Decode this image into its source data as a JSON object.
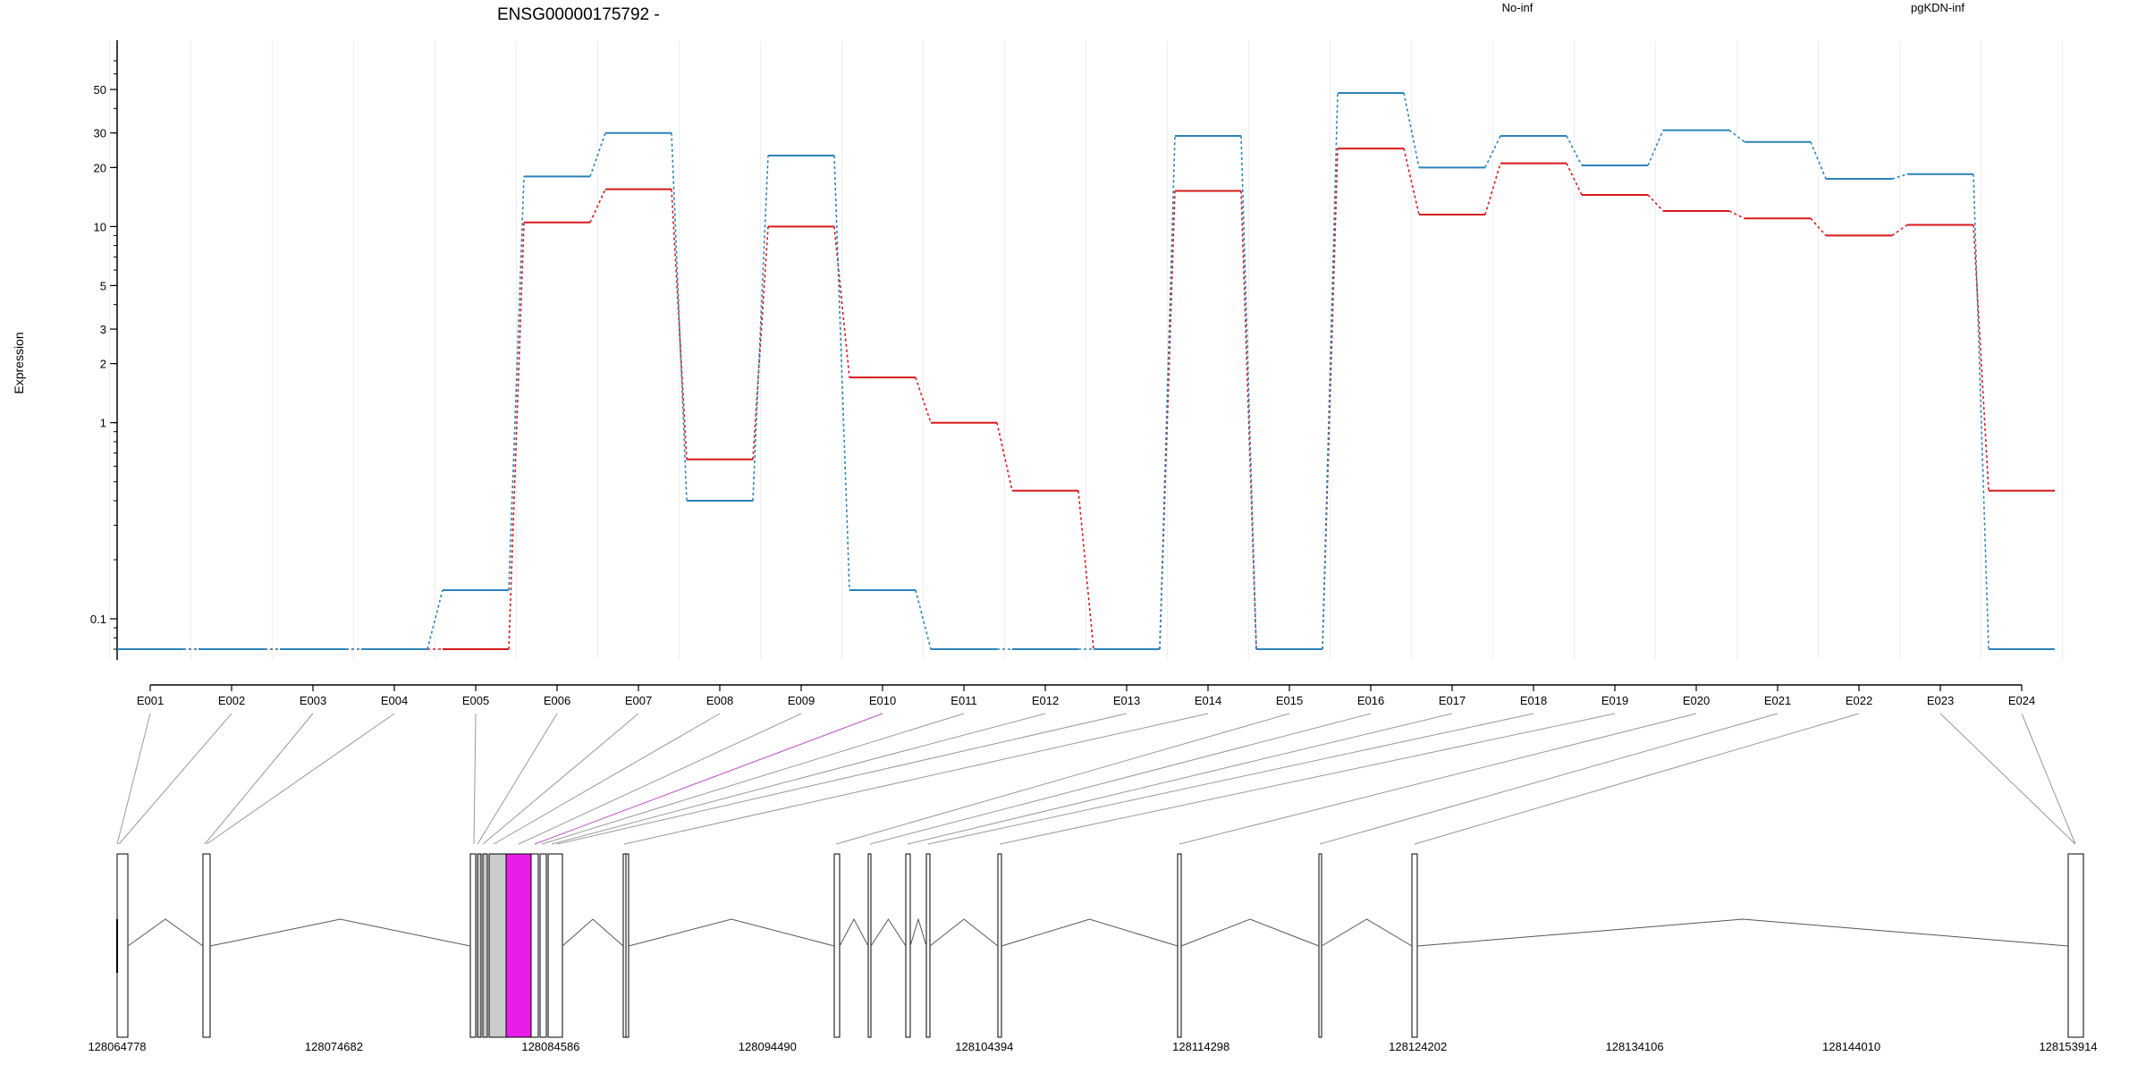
{
  "chart_data": {
    "type": "line",
    "title": "ENSG00000175792 -",
    "ylabel": "Expression",
    "yscale": "log",
    "ylim": [
      0.07,
      70
    ],
    "yticks": [
      0.1,
      1,
      2,
      3,
      5,
      10,
      20,
      30,
      50
    ],
    "yticklabels": [
      "0.1",
      "1",
      "2",
      "3",
      "5",
      "10",
      "20",
      "30",
      "50"
    ],
    "categories": [
      "E001",
      "E002",
      "E003",
      "E004",
      "E005",
      "E006",
      "E007",
      "E008",
      "E009",
      "E010",
      "E011",
      "E012",
      "E013",
      "E014",
      "E015",
      "E016",
      "E017",
      "E018",
      "E019",
      "E020",
      "E021",
      "E022",
      "E023",
      "E024"
    ],
    "highlight_category": "E010",
    "series": [
      {
        "name": "No-inf",
        "color": "#d7191c",
        "values": [
          0.07,
          0.07,
          0.07,
          0.07,
          0.07,
          10.5,
          15.5,
          0.65,
          10,
          1.7,
          1,
          0.45,
          0.07,
          15.2,
          0.07,
          25,
          11.5,
          21,
          14.5,
          12,
          11,
          9,
          10.2,
          0.45
        ]
      },
      {
        "name": "pgKDN-inf",
        "color": "#2b83ba",
        "values": [
          0.07,
          0.07,
          0.07,
          0.07,
          0.14,
          18,
          30,
          0.4,
          23,
          0.14,
          0.07,
          0.07,
          0.07,
          29,
          0.07,
          48,
          20,
          29,
          20.5,
          31,
          27,
          17.5,
          18.5,
          0.07
        ]
      }
    ],
    "genomic_ticks": [
      "128064778",
      "128074682",
      "128084586",
      "128094490",
      "128104394",
      "128114298",
      "128124202",
      "128134106",
      "128144010",
      "128153914"
    ],
    "grid": true,
    "legend": "top-right"
  },
  "colors": {
    "highlight_exon": "#e81ee8",
    "exon_fill": "#cccccc",
    "connector": "#999999",
    "connector_highlight": "#c04fc0"
  }
}
